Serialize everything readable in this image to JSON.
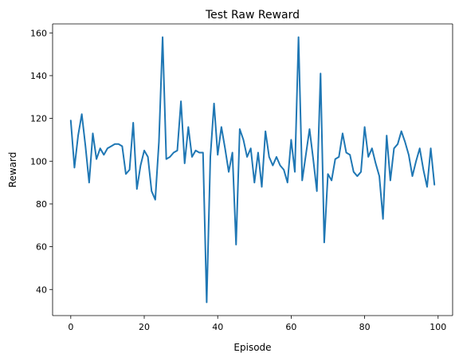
{
  "chart_data": {
    "type": "line",
    "title": "Test Raw Reward",
    "xlabel": "Episode",
    "ylabel": "Reward",
    "xlim": [
      -4.95,
      103.95
    ],
    "ylim": [
      27.8,
      164.2
    ],
    "xticks": [
      0,
      20,
      40,
      60,
      80,
      100
    ],
    "yticks": [
      40,
      60,
      80,
      100,
      120,
      140,
      160
    ],
    "grid": false,
    "line_color": "#1f77b4",
    "series": [
      {
        "x": [
          0,
          1,
          2,
          3,
          4,
          5,
          6,
          7,
          8,
          9,
          10,
          11,
          12,
          13,
          14,
          15,
          16,
          17,
          18,
          19,
          20,
          21,
          22,
          23,
          24,
          25,
          26,
          27,
          28,
          29,
          30,
          31,
          32,
          33,
          34,
          35,
          36,
          37,
          38,
          39,
          40,
          41,
          42,
          43,
          44,
          45,
          46,
          47,
          48,
          49,
          50,
          51,
          52,
          53,
          54,
          55,
          56,
          57,
          58,
          59,
          60,
          61,
          62,
          63,
          64,
          65,
          66,
          67,
          68,
          69,
          70,
          71,
          72,
          73,
          74,
          75,
          76,
          77,
          78,
          79,
          80,
          81,
          82,
          83,
          84,
          85,
          86,
          87,
          88,
          89,
          90,
          91,
          92,
          93,
          94,
          95,
          96,
          97,
          98,
          99
        ],
        "y": [
          119,
          97,
          112,
          122,
          107,
          90,
          113,
          101,
          106,
          103,
          106,
          107,
          108,
          108,
          107,
          94,
          96,
          118,
          87,
          98,
          105,
          102,
          86,
          82,
          109,
          158,
          101,
          102,
          104,
          105,
          128,
          99,
          116,
          102,
          105,
          104,
          104,
          34,
          102,
          127,
          103,
          116,
          106,
          95,
          104,
          61,
          115,
          110,
          102,
          106,
          90,
          104,
          88,
          114,
          102,
          98,
          102,
          98,
          96,
          90,
          110,
          95,
          158,
          91,
          103,
          115,
          101,
          86,
          141,
          62,
          94,
          91,
          101,
          102,
          113,
          104,
          103,
          95,
          93,
          95,
          116,
          102,
          106,
          99,
          93,
          73,
          112,
          91,
          106,
          108,
          114,
          109,
          103,
          93,
          100,
          106,
          96,
          88,
          106,
          89
        ]
      }
    ]
  }
}
